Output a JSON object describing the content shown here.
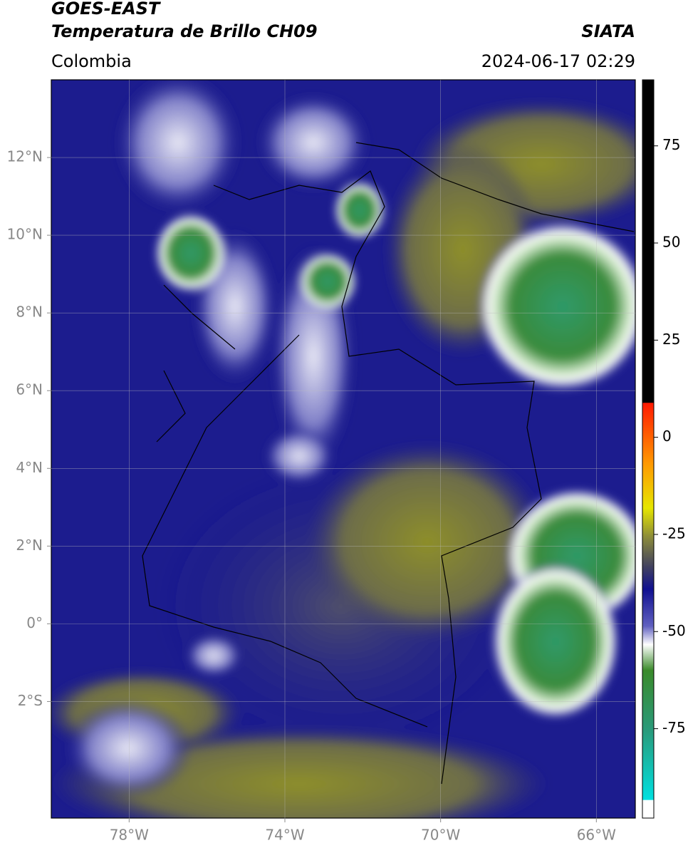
{
  "header": {
    "satellite": "GOES-EAST",
    "product": "Temperatura de Brillo CH09",
    "source": "SIATA",
    "region": "Colombia",
    "datetime": "2024-06-17 02:29"
  },
  "chart_data": {
    "type": "map",
    "xlim": [
      -80,
      -65
    ],
    "ylim": [
      -5,
      14
    ],
    "xticks": [
      {
        "value": -78,
        "label": "78°W"
      },
      {
        "value": -74,
        "label": "74°W"
      },
      {
        "value": -70,
        "label": "70°W"
      },
      {
        "value": -66,
        "label": "66°W"
      }
    ],
    "yticks": [
      {
        "value": 12,
        "label": "12°N"
      },
      {
        "value": 10,
        "label": "10°N"
      },
      {
        "value": 8,
        "label": "8°N"
      },
      {
        "value": 6,
        "label": "6°N"
      },
      {
        "value": 4,
        "label": "4°N"
      },
      {
        "value": 2,
        "label": "2°N"
      },
      {
        "value": 0,
        "label": "0°"
      },
      {
        "value": -2,
        "label": "2°S"
      }
    ],
    "grid": true,
    "colorbar": {
      "lim": [
        -98,
        92
      ],
      "ticks": [
        75,
        50,
        25,
        0,
        -25,
        -50,
        -75
      ]
    }
  }
}
